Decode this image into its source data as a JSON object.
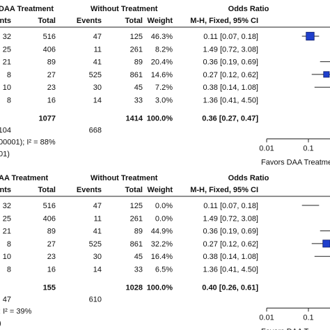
{
  "colors": {
    "text": "#111111",
    "rule": "#222222",
    "marker": "#1f3fcc"
  },
  "panels": [
    {
      "headers": {
        "group1": "DAA Treatment",
        "group1_fragment": "nts",
        "total": "Total",
        "group2": "Without Treatment",
        "events": "Events",
        "total2": "Total",
        "weight": "Weight",
        "or_title": "Odds Ratio",
        "method": "M-H, Fixed, 95% CI"
      },
      "rows": [
        {
          "events1": "32",
          "total1": "516",
          "events2": "47",
          "total2": "125",
          "weight": "46.3%",
          "ci": "0.11 [0.07, 0.18]"
        },
        {
          "events1": "25",
          "total1": "406",
          "events2": "11",
          "total2": "261",
          "weight": "8.2%",
          "ci": "1.49 [0.72, 3.08]"
        },
        {
          "events1": "21",
          "total1": "89",
          "events2": "41",
          "total2": "89",
          "weight": "20.4%",
          "ci": "0.36 [0.19, 0.69]"
        },
        {
          "events1": "8",
          "total1": "27",
          "events2": "525",
          "total2": "861",
          "weight": "14.6%",
          "ci": "0.27 [0.12, 0.62]"
        },
        {
          "events1": "10",
          "total1": "23",
          "events2": "30",
          "total2": "45",
          "weight": "7.2%",
          "ci": "0.38 [0.14, 1.08]"
        },
        {
          "events1": "8",
          "total1": "16",
          "events2": "14",
          "total2": "33",
          "weight": "3.0%",
          "ci": "1.36 [0.41, 4.50]"
        }
      ],
      "total_row": {
        "total1": "1077",
        "total2": "1414",
        "weight": "100.0%",
        "ci": "0.36 [0.27, 0.47]"
      },
      "events_row": {
        "events1": "104",
        "events2": "668"
      },
      "heterogeneity": "00001); I² = 88%",
      "overall_test": "01)",
      "axis_ticks": [
        "0.01",
        "0.1"
      ],
      "favors_label": "Favors DAA Treatment"
    },
    {
      "headers": {
        "group1": "AA Treatment",
        "group1_fragment": "nts",
        "total": "Total",
        "group2": "Without Treatment",
        "events": "Events",
        "total2": "Total",
        "weight": "Weight",
        "or_title": "Odds Ratio",
        "method": "M-H, Fixed, 95% CI"
      },
      "rows": [
        {
          "events1": "32",
          "total1": "516",
          "events2": "47",
          "total2": "125",
          "weight": "0.0%",
          "ci": "0.11 [0.07, 0.18]"
        },
        {
          "events1": "25",
          "total1": "406",
          "events2": "11",
          "total2": "261",
          "weight": "0.0%",
          "ci": "1.49 [0.72, 3.08]"
        },
        {
          "events1": "21",
          "total1": "89",
          "events2": "41",
          "total2": "89",
          "weight": "44.9%",
          "ci": "0.36 [0.19, 0.69]"
        },
        {
          "events1": "8",
          "total1": "27",
          "events2": "525",
          "total2": "861",
          "weight": "32.2%",
          "ci": "0.27 [0.12, 0.62]"
        },
        {
          "events1": "10",
          "total1": "23",
          "events2": "30",
          "total2": "45",
          "weight": "16.4%",
          "ci": "0.38 [0.14, 1.08]"
        },
        {
          "events1": "8",
          "total1": "16",
          "events2": "14",
          "total2": "33",
          "weight": "6.5%",
          "ci": "1.36 [0.41, 4.50]"
        }
      ],
      "total_row": {
        "total1": "155",
        "total2": "1028",
        "weight": "100.0%",
        "ci": "0.40 [0.26, 0.61]"
      },
      "events_row": {
        "events1": "47",
        "events2": "610"
      },
      "heterogeneity": "; I² = 39%",
      "overall_test": ")",
      "axis_ticks": [
        "0.01",
        "0.1"
      ],
      "favors_label": "Favors DAA T"
    }
  ],
  "chart_data": {
    "type": "forest",
    "title": "",
    "x_scale": "log",
    "x_ticks": [
      0.01,
      0.1
    ],
    "panels": [
      {
        "header_group1": "DAA Treatment",
        "header_group2": "Without Treatment",
        "column_title": "Odds Ratio",
        "method": "M-H, Fixed, 95% CI",
        "studies": [
          {
            "events1": 32,
            "total1": 516,
            "events2": 47,
            "total2": 125,
            "weight_pct": 46.3,
            "or": 0.11,
            "ci_low": 0.07,
            "ci_high": 0.18
          },
          {
            "events1": 25,
            "total1": 406,
            "events2": 11,
            "total2": 261,
            "weight_pct": 8.2,
            "or": 1.49,
            "ci_low": 0.72,
            "ci_high": 3.08
          },
          {
            "events1": 21,
            "total1": 89,
            "events2": 41,
            "total2": 89,
            "weight_pct": 20.4,
            "or": 0.36,
            "ci_low": 0.19,
            "ci_high": 0.69
          },
          {
            "events1": 8,
            "total1": 27,
            "events2": 525,
            "total2": 861,
            "weight_pct": 14.6,
            "or": 0.27,
            "ci_low": 0.12,
            "ci_high": 0.62
          },
          {
            "events1": 10,
            "total1": 23,
            "events2": 30,
            "total2": 45,
            "weight_pct": 7.2,
            "or": 0.38,
            "ci_low": 0.14,
            "ci_high": 1.08
          },
          {
            "events1": 8,
            "total1": 16,
            "events2": 14,
            "total2": 33,
            "weight_pct": 3.0,
            "or": 1.36,
            "ci_low": 0.41,
            "ci_high": 4.5
          }
        ],
        "overall": {
          "total1": 1077,
          "total2": 1414,
          "or": 0.36,
          "ci_low": 0.27,
          "ci_high": 0.47,
          "events1": 104,
          "events2": 668
        }
      },
      {
        "header_group1": "AA Treatment",
        "header_group2": "Without Treatment",
        "column_title": "Odds Ratio",
        "method": "M-H, Fixed, 95% CI",
        "studies": [
          {
            "events1": 32,
            "total1": 516,
            "events2": 47,
            "total2": 125,
            "weight_pct": 0.0,
            "or": 0.11,
            "ci_low": 0.07,
            "ci_high": 0.18
          },
          {
            "events1": 25,
            "total1": 406,
            "events2": 11,
            "total2": 261,
            "weight_pct": 0.0,
            "or": 1.49,
            "ci_low": 0.72,
            "ci_high": 3.08
          },
          {
            "events1": 21,
            "total1": 89,
            "events2": 41,
            "total2": 89,
            "weight_pct": 44.9,
            "or": 0.36,
            "ci_low": 0.19,
            "ci_high": 0.69
          },
          {
            "events1": 8,
            "total1": 27,
            "events2": 525,
            "total2": 861,
            "weight_pct": 32.2,
            "or": 0.27,
            "ci_low": 0.12,
            "ci_high": 0.62
          },
          {
            "events1": 10,
            "total1": 23,
            "events2": 30,
            "total2": 45,
            "weight_pct": 16.4,
            "or": 0.38,
            "ci_low": 0.14,
            "ci_high": 1.08
          },
          {
            "events1": 8,
            "total1": 16,
            "events2": 14,
            "total2": 33,
            "weight_pct": 6.5,
            "or": 1.36,
            "ci_low": 0.41,
            "ci_high": 4.5
          }
        ],
        "overall": {
          "total1": 155,
          "total2": 1028,
          "or": 0.4,
          "ci_low": 0.26,
          "ci_high": 0.61,
          "events1": 47,
          "events2": 610
        }
      }
    ]
  }
}
